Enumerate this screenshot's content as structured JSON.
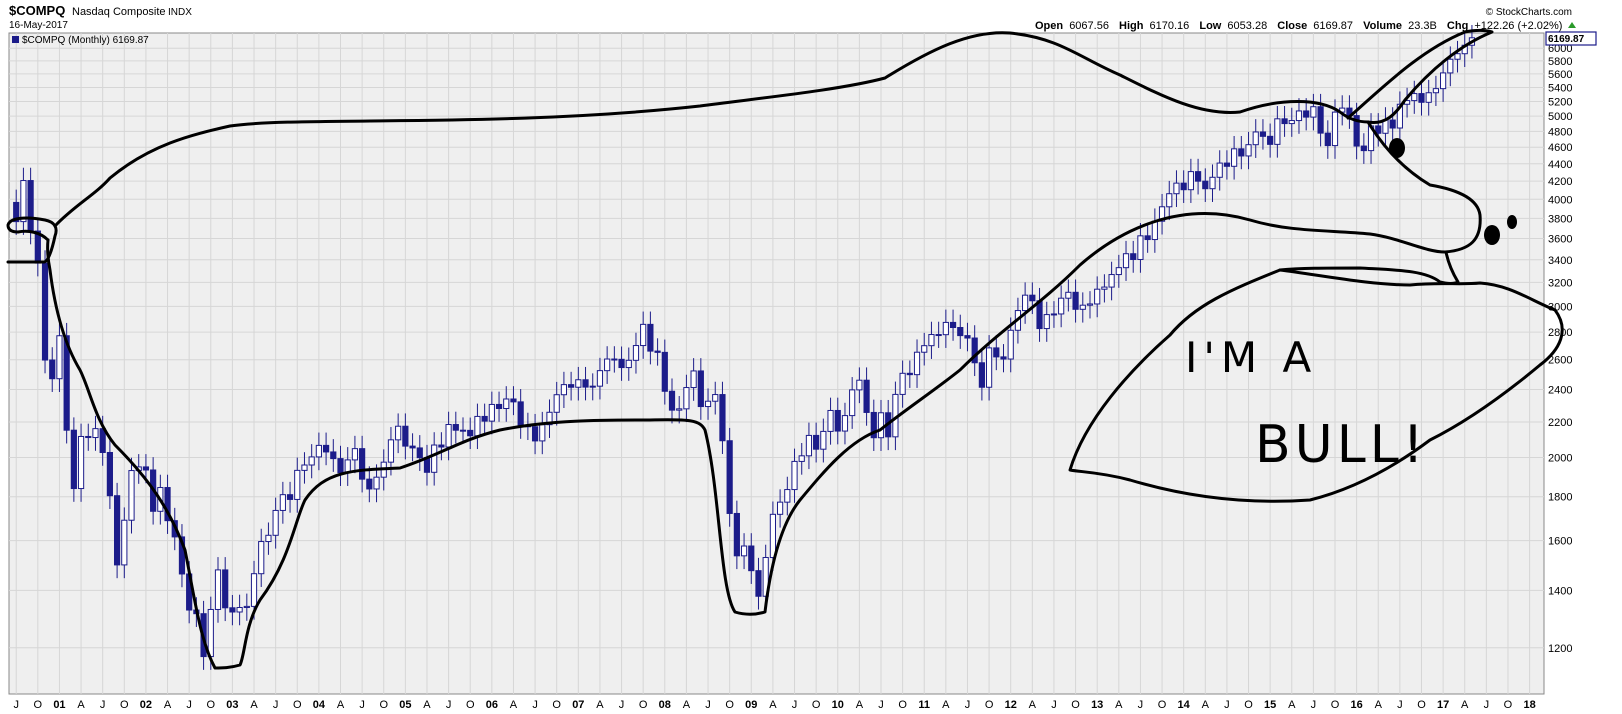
{
  "header": {
    "symbol": "$COMPQ",
    "name": "Nasdaq Composite",
    "exchange": "INDX",
    "date": "16-May-2017",
    "legend": "$COMPQ (Monthly) 6169.87",
    "source": "© StockCharts.com",
    "stats": [
      {
        "label": "Open",
        "value": "6067.56"
      },
      {
        "label": "High",
        "value": "6170.16"
      },
      {
        "label": "Low",
        "value": "6053.28"
      },
      {
        "label": "Close",
        "value": "6169.87"
      },
      {
        "label": "Volume",
        "value": "23.3B"
      },
      {
        "label": "Chg",
        "value": "+122.26 (+2.02%)"
      }
    ],
    "last_price_tag": "6169.87"
  },
  "annotation": {
    "line1": "I'M  A",
    "line2": "BULL!"
  },
  "colors": {
    "candle": "#1c1c8a",
    "grid": "#d6d6d6",
    "plot_bg": "#efefef",
    "ink": "#000000",
    "up_arrow": "#2a9a2a"
  },
  "chart_data": {
    "type": "candlestick",
    "title": "$COMPQ Nasdaq Composite INDX",
    "series_name": "$COMPQ (Monthly)",
    "y_scale": "log",
    "ylim": [
      1060,
      6250
    ],
    "y_ticks": [
      1200,
      1400,
      1600,
      1800,
      2000,
      2200,
      2400,
      2600,
      2800,
      3000,
      3200,
      3400,
      3600,
      3800,
      4000,
      4200,
      4400,
      4600,
      4800,
      5000,
      5200,
      5400,
      5600,
      5800,
      6000
    ],
    "x_range": [
      "2000-06",
      "2018-03"
    ],
    "x_ticks": [
      {
        "label": "J",
        "date": "2000-07"
      },
      {
        "label": "O",
        "date": "2000-10"
      },
      {
        "label": "01",
        "date": "2001-01"
      },
      {
        "label": "A",
        "date": "2001-04"
      },
      {
        "label": "J",
        "date": "2001-07"
      },
      {
        "label": "O",
        "date": "2001-10"
      },
      {
        "label": "02",
        "date": "2002-01"
      },
      {
        "label": "A",
        "date": "2002-04"
      },
      {
        "label": "J",
        "date": "2002-07"
      },
      {
        "label": "O",
        "date": "2002-10"
      },
      {
        "label": "03",
        "date": "2003-01"
      },
      {
        "label": "A",
        "date": "2003-04"
      },
      {
        "label": "J",
        "date": "2003-07"
      },
      {
        "label": "O",
        "date": "2003-10"
      },
      {
        "label": "04",
        "date": "2004-01"
      },
      {
        "label": "A",
        "date": "2004-04"
      },
      {
        "label": "J",
        "date": "2004-07"
      },
      {
        "label": "O",
        "date": "2004-10"
      },
      {
        "label": "05",
        "date": "2005-01"
      },
      {
        "label": "A",
        "date": "2005-04"
      },
      {
        "label": "J",
        "date": "2005-07"
      },
      {
        "label": "O",
        "date": "2005-10"
      },
      {
        "label": "06",
        "date": "2006-01"
      },
      {
        "label": "A",
        "date": "2006-04"
      },
      {
        "label": "J",
        "date": "2006-07"
      },
      {
        "label": "O",
        "date": "2006-10"
      },
      {
        "label": "07",
        "date": "2007-01"
      },
      {
        "label": "A",
        "date": "2007-04"
      },
      {
        "label": "J",
        "date": "2007-07"
      },
      {
        "label": "O",
        "date": "2007-10"
      },
      {
        "label": "08",
        "date": "2008-01"
      },
      {
        "label": "A",
        "date": "2008-04"
      },
      {
        "label": "J",
        "date": "2008-07"
      },
      {
        "label": "O",
        "date": "2008-10"
      },
      {
        "label": "09",
        "date": "2009-01"
      },
      {
        "label": "A",
        "date": "2009-04"
      },
      {
        "label": "J",
        "date": "2009-07"
      },
      {
        "label": "O",
        "date": "2009-10"
      },
      {
        "label": "10",
        "date": "2010-01"
      },
      {
        "label": "A",
        "date": "2010-04"
      },
      {
        "label": "J",
        "date": "2010-07"
      },
      {
        "label": "O",
        "date": "2010-10"
      },
      {
        "label": "11",
        "date": "2011-01"
      },
      {
        "label": "A",
        "date": "2011-04"
      },
      {
        "label": "J",
        "date": "2011-07"
      },
      {
        "label": "O",
        "date": "2011-10"
      },
      {
        "label": "12",
        "date": "2012-01"
      },
      {
        "label": "A",
        "date": "2012-04"
      },
      {
        "label": "J",
        "date": "2012-07"
      },
      {
        "label": "O",
        "date": "2012-10"
      },
      {
        "label": "13",
        "date": "2013-01"
      },
      {
        "label": "A",
        "date": "2013-04"
      },
      {
        "label": "J",
        "date": "2013-07"
      },
      {
        "label": "O",
        "date": "2013-10"
      },
      {
        "label": "14",
        "date": "2014-01"
      },
      {
        "label": "A",
        "date": "2014-04"
      },
      {
        "label": "J",
        "date": "2014-07"
      },
      {
        "label": "O",
        "date": "2014-10"
      },
      {
        "label": "15",
        "date": "2015-01"
      },
      {
        "label": "A",
        "date": "2015-04"
      },
      {
        "label": "J",
        "date": "2015-07"
      },
      {
        "label": "O",
        "date": "2015-10"
      },
      {
        "label": "16",
        "date": "2016-01"
      },
      {
        "label": "A",
        "date": "2016-04"
      },
      {
        "label": "J",
        "date": "2016-07"
      },
      {
        "label": "O",
        "date": "2016-10"
      },
      {
        "label": "17",
        "date": "2017-01"
      },
      {
        "label": "A",
        "date": "2017-04"
      },
      {
        "label": "J",
        "date": "2017-07"
      },
      {
        "label": "O",
        "date": "2017-10"
      },
      {
        "label": "18",
        "date": "2018-01"
      }
    ],
    "close_path": [
      [
        "2000-06",
        3966
      ],
      [
        "2000-07",
        3767
      ],
      [
        "2000-08",
        4206
      ],
      [
        "2000-09",
        3673
      ],
      [
        "2000-10",
        3370
      ],
      [
        "2000-11",
        2598
      ],
      [
        "2000-12",
        2471
      ],
      [
        "2001-01",
        2773
      ],
      [
        "2001-02",
        2152
      ],
      [
        "2001-03",
        1840
      ],
      [
        "2001-04",
        2116
      ],
      [
        "2001-05",
        2110
      ],
      [
        "2001-06",
        2161
      ],
      [
        "2001-07",
        2027
      ],
      [
        "2001-08",
        1805
      ],
      [
        "2001-09",
        1499
      ],
      [
        "2001-10",
        1690
      ],
      [
        "2001-11",
        1931
      ],
      [
        "2001-12",
        1950
      ],
      [
        "2002-01",
        1934
      ],
      [
        "2002-02",
        1731
      ],
      [
        "2002-03",
        1845
      ],
      [
        "2002-04",
        1688
      ],
      [
        "2002-05",
        1616
      ],
      [
        "2002-06",
        1463
      ],
      [
        "2002-07",
        1328
      ],
      [
        "2002-08",
        1315
      ],
      [
        "2002-09",
        1172
      ],
      [
        "2002-10",
        1330
      ],
      [
        "2002-11",
        1479
      ],
      [
        "2002-12",
        1336
      ],
      [
        "2003-01",
        1321
      ],
      [
        "2003-02",
        1337
      ],
      [
        "2003-03",
        1341
      ],
      [
        "2003-04",
        1464
      ],
      [
        "2003-05",
        1596
      ],
      [
        "2003-06",
        1623
      ],
      [
        "2003-07",
        1735
      ],
      [
        "2003-08",
        1810
      ],
      [
        "2003-09",
        1787
      ],
      [
        "2003-10",
        1932
      ],
      [
        "2003-11",
        1960
      ],
      [
        "2003-12",
        2003
      ],
      [
        "2004-01",
        2066
      ],
      [
        "2004-02",
        2030
      ],
      [
        "2004-03",
        1994
      ],
      [
        "2004-04",
        1920
      ],
      [
        "2004-05",
        1987
      ],
      [
        "2004-06",
        2048
      ],
      [
        "2004-07",
        1887
      ],
      [
        "2004-08",
        1838
      ],
      [
        "2004-09",
        1897
      ],
      [
        "2004-10",
        1975
      ],
      [
        "2004-11",
        2097
      ],
      [
        "2004-12",
        2175
      ],
      [
        "2005-01",
        2062
      ],
      [
        "2005-02",
        2052
      ],
      [
        "2005-03",
        1999
      ],
      [
        "2005-04",
        1922
      ],
      [
        "2005-05",
        2068
      ],
      [
        "2005-06",
        2057
      ],
      [
        "2005-07",
        2185
      ],
      [
        "2005-08",
        2152
      ],
      [
        "2005-09",
        2151
      ],
      [
        "2005-10",
        2120
      ],
      [
        "2005-11",
        2233
      ],
      [
        "2005-12",
        2205
      ],
      [
        "2006-01",
        2306
      ],
      [
        "2006-02",
        2281
      ],
      [
        "2006-03",
        2340
      ],
      [
        "2006-04",
        2322
      ],
      [
        "2006-05",
        2179
      ],
      [
        "2006-06",
        2172
      ],
      [
        "2006-07",
        2091
      ],
      [
        "2006-08",
        2184
      ],
      [
        "2006-09",
        2258
      ],
      [
        "2006-10",
        2367
      ],
      [
        "2006-11",
        2432
      ],
      [
        "2006-12",
        2415
      ],
      [
        "2007-01",
        2464
      ],
      [
        "2007-02",
        2416
      ],
      [
        "2007-03",
        2422
      ],
      [
        "2007-04",
        2525
      ],
      [
        "2007-05",
        2605
      ],
      [
        "2007-06",
        2603
      ],
      [
        "2007-07",
        2546
      ],
      [
        "2007-08",
        2596
      ],
      [
        "2007-09",
        2701
      ],
      [
        "2007-10",
        2859
      ],
      [
        "2007-11",
        2661
      ],
      [
        "2007-12",
        2652
      ],
      [
        "2008-01",
        2389
      ],
      [
        "2008-02",
        2271
      ],
      [
        "2008-03",
        2279
      ],
      [
        "2008-04",
        2413
      ],
      [
        "2008-05",
        2523
      ],
      [
        "2008-06",
        2293
      ],
      [
        "2008-07",
        2326
      ],
      [
        "2008-08",
        2368
      ],
      [
        "2008-09",
        2092
      ],
      [
        "2008-10",
        1721
      ],
      [
        "2008-11",
        1536
      ],
      [
        "2008-12",
        1577
      ],
      [
        "2009-01",
        1476
      ],
      [
        "2009-02",
        1378
      ],
      [
        "2009-03",
        1529
      ],
      [
        "2009-04",
        1717
      ],
      [
        "2009-05",
        1774
      ],
      [
        "2009-06",
        1835
      ],
      [
        "2009-07",
        1979
      ],
      [
        "2009-08",
        2009
      ],
      [
        "2009-09",
        2122
      ],
      [
        "2009-10",
        2045
      ],
      [
        "2009-11",
        2145
      ],
      [
        "2009-12",
        2269
      ],
      [
        "2010-01",
        2147
      ],
      [
        "2010-02",
        2238
      ],
      [
        "2010-03",
        2398
      ],
      [
        "2010-04",
        2461
      ],
      [
        "2010-05",
        2257
      ],
      [
        "2010-06",
        2109
      ],
      [
        "2010-07",
        2255
      ],
      [
        "2010-08",
        2114
      ],
      [
        "2010-09",
        2369
      ],
      [
        "2010-10",
        2507
      ],
      [
        "2010-11",
        2498
      ],
      [
        "2010-12",
        2653
      ],
      [
        "2011-01",
        2700
      ],
      [
        "2011-02",
        2782
      ],
      [
        "2011-03",
        2781
      ],
      [
        "2011-04",
        2874
      ],
      [
        "2011-05",
        2835
      ],
      [
        "2011-06",
        2774
      ],
      [
        "2011-07",
        2756
      ],
      [
        "2011-08",
        2579
      ],
      [
        "2011-09",
        2415
      ],
      [
        "2011-10",
        2684
      ],
      [
        "2011-11",
        2620
      ],
      [
        "2011-12",
        2605
      ],
      [
        "2012-01",
        2814
      ],
      [
        "2012-02",
        2967
      ],
      [
        "2012-03",
        3092
      ],
      [
        "2012-04",
        3046
      ],
      [
        "2012-05",
        2827
      ],
      [
        "2012-06",
        2935
      ],
      [
        "2012-07",
        2940
      ],
      [
        "2012-08",
        3067
      ],
      [
        "2012-09",
        3116
      ],
      [
        "2012-10",
        2977
      ],
      [
        "2012-11",
        3010
      ],
      [
        "2012-12",
        3020
      ],
      [
        "2013-01",
        3142
      ],
      [
        "2013-02",
        3160
      ],
      [
        "2013-03",
        3268
      ],
      [
        "2013-04",
        3329
      ],
      [
        "2013-05",
        3456
      ],
      [
        "2013-06",
        3403
      ],
      [
        "2013-07",
        3626
      ],
      [
        "2013-08",
        3590
      ],
      [
        "2013-09",
        3771
      ],
      [
        "2013-10",
        3920
      ],
      [
        "2013-11",
        4060
      ],
      [
        "2013-12",
        4177
      ],
      [
        "2014-01",
        4104
      ],
      [
        "2014-02",
        4308
      ],
      [
        "2014-03",
        4199
      ],
      [
        "2014-04",
        4115
      ],
      [
        "2014-05",
        4243
      ],
      [
        "2014-06",
        4408
      ],
      [
        "2014-07",
        4370
      ],
      [
        "2014-08",
        4580
      ],
      [
        "2014-09",
        4493
      ],
      [
        "2014-10",
        4631
      ],
      [
        "2014-11",
        4792
      ],
      [
        "2014-12",
        4736
      ],
      [
        "2015-01",
        4635
      ],
      [
        "2015-02",
        4964
      ],
      [
        "2015-03",
        4901
      ],
      [
        "2015-04",
        4941
      ],
      [
        "2015-05",
        5070
      ],
      [
        "2015-06",
        4987
      ],
      [
        "2015-07",
        5128
      ],
      [
        "2015-08",
        4777
      ],
      [
        "2015-09",
        4620
      ],
      [
        "2015-10",
        5054
      ],
      [
        "2015-11",
        5109
      ],
      [
        "2015-12",
        5007
      ],
      [
        "2016-01",
        4614
      ],
      [
        "2016-02",
        4558
      ],
      [
        "2016-03",
        4870
      ],
      [
        "2016-04",
        4775
      ],
      [
        "2016-05",
        4948
      ],
      [
        "2016-06",
        4843
      ],
      [
        "2016-07",
        5162
      ],
      [
        "2016-08",
        5213
      ],
      [
        "2016-09",
        5312
      ],
      [
        "2016-10",
        5189
      ],
      [
        "2016-11",
        5324
      ],
      [
        "2016-12",
        5383
      ],
      [
        "2017-01",
        5615
      ],
      [
        "2017-02",
        5825
      ],
      [
        "2017-03",
        5912
      ],
      [
        "2017-04",
        6048
      ],
      [
        "2017-05",
        6170
      ]
    ]
  }
}
